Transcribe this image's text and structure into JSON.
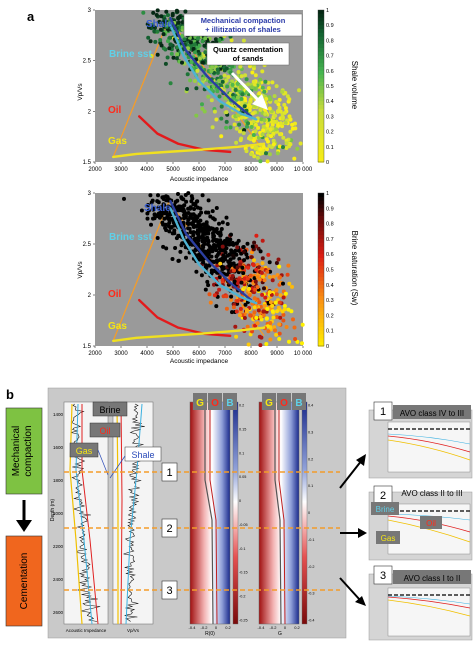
{
  "panel_a": {
    "label": "a",
    "top": {
      "annotations": {
        "shale": "Shale",
        "brine": "Brine sst",
        "oil": "Oil",
        "gas": "Gas",
        "mech_line1": "Mechanical compaction",
        "mech_line2": "+ illitization of shales",
        "quartz_line1": "Quartz cementation",
        "quartz_line2": "of sands"
      },
      "colorbar_label": "Shale volume",
      "colors": {
        "low": "#f5e614",
        "mid": "#3fb54a",
        "high": "#0a2e1a",
        "trend": "#4eb3d3"
      }
    },
    "bottom": {
      "annotations": {
        "shale": "Shale",
        "brine": "Brine sst",
        "oil": "Oil",
        "gas": "Gas"
      },
      "colorbar_label": "Brine saturation (Sw)",
      "colors": {
        "low": "#ffee00",
        "mid": "#e0201c",
        "high": "#000000",
        "trend": "#4eb3d3"
      }
    }
  },
  "panel_b": {
    "label": "b",
    "left_labels": {
      "mech_line1": "Mechanical",
      "mech_line2": "compaction",
      "cement": "Cementation"
    },
    "legend": {
      "brine": "Brine",
      "oil": "Oil",
      "gas": "Gas",
      "shale": "Shale"
    },
    "gob": {
      "g": "G",
      "o": "O",
      "b": "B"
    },
    "markers": [
      "1",
      "2",
      "3"
    ],
    "avo": [
      {
        "num": "1",
        "title": "AVO class IV to III"
      },
      {
        "num": "2",
        "title": "AVO class II to III"
      },
      {
        "num": "3",
        "title": "AVO class I to II"
      }
    ],
    "avo2_labels": {
      "brine": "Brine",
      "oil": "Oil",
      "gas": "Gas"
    },
    "tracks": {
      "ai_xlabel": "Acoustic Impedance",
      "vpvs_xlabel": "Vp/Vs",
      "r0_xlabel": "R(0)",
      "g_xlabel": "G",
      "depth_label": "Depth (m)",
      "depth_ticks": [
        "1400",
        "1600",
        "1800",
        "2000",
        "2200",
        "2400",
        "2600"
      ],
      "ai_ticks": [
        "5000",
        "10000"
      ],
      "vpvs_ticks": [
        "1.5",
        "2",
        "2.5"
      ],
      "r0_ticks": [
        "-0.4",
        "-0.2",
        "0",
        "0.2"
      ],
      "g_ticks": [
        "-0.4",
        "-0.2",
        "0",
        "0.2"
      ],
      "r0_cbar_ticks": [
        "0.2",
        "0.15",
        "0.1",
        "0.05",
        "0",
        "-0.05",
        "-0.1",
        "-0.15",
        "-0.2",
        "-0.25"
      ],
      "g_cbar_ticks": [
        "0.4",
        "0.3",
        "0.2",
        "0.1",
        "0",
        "-0.1",
        "-0.2",
        "-0.3",
        "-0.4"
      ]
    }
  },
  "chart_data": [
    {
      "type": "scatter",
      "xlabel": "Acoustic impedance",
      "ylabel": "Vp/Vs",
      "xlim": [
        2000,
        10000
      ],
      "ylim": [
        1.5,
        3
      ],
      "xticks": [
        "2000",
        "3000",
        "4000",
        "5000",
        "6000",
        "7000",
        "8000",
        "9000",
        "10 000"
      ],
      "yticks": [
        "1.5",
        "2",
        "2.5",
        "3"
      ],
      "colorbar": {
        "label": "Shale volume",
        "ticks": [
          "1",
          "0.9",
          "0.8",
          "0.7",
          "0.6",
          "0.5",
          "0.4",
          "0.3",
          "0.2",
          "0.1",
          "0"
        ]
      },
      "trend_lines": [
        {
          "name": "Shale",
          "color": "#2b3fa0",
          "points": [
            [
              4900,
              2.92
            ],
            [
              5500,
              2.6
            ],
            [
              6300,
              2.35
            ],
            [
              7200,
              2.12
            ],
            [
              8000,
              1.95
            ]
          ]
        },
        {
          "name": "Brine sst",
          "color": "#4eb3d3",
          "points": [
            [
              4900,
              2.85
            ],
            [
              5400,
              2.55
            ],
            [
              6000,
              2.3
            ],
            [
              6800,
              2.1
            ],
            [
              7600,
              1.98
            ],
            [
              8200,
              1.92
            ]
          ]
        },
        {
          "name": "Oil",
          "color": "#e31a1c",
          "points": [
            [
              3700,
              1.95
            ],
            [
              4400,
              1.78
            ],
            [
              5200,
              1.68
            ],
            [
              6200,
              1.62
            ],
            [
              7200,
              1.6
            ]
          ]
        },
        {
          "name": "Gas",
          "color": "#f0e020",
          "points": [
            [
              2700,
              1.55
            ],
            [
              3600,
              1.58
            ],
            [
              4800,
              1.6
            ],
            [
              6000,
              1.62
            ],
            [
              7500,
              1.65
            ],
            [
              8500,
              1.68
            ]
          ]
        }
      ],
      "boundary_lines": [
        {
          "color": "#f39c2a",
          "points": [
            [
              2700,
              1.55
            ],
            [
              4850,
              2.92
            ],
            [
              8500,
              1.6
            ]
          ]
        }
      ]
    },
    {
      "type": "scatter",
      "xlabel": "Acoustic impedance",
      "ylabel": "Vp/Vs",
      "xlim": [
        2000,
        10000
      ],
      "ylim": [
        1.5,
        3
      ],
      "xticks": [
        "2000",
        "3000",
        "4000",
        "5000",
        "6000",
        "7000",
        "8000",
        "9000",
        "10 000"
      ],
      "yticks": [
        "1.5",
        "2",
        "2.5",
        "3"
      ],
      "colorbar": {
        "label": "Brine saturation (Sw)",
        "ticks": [
          "1",
          "0.9",
          "0.8",
          "0.7",
          "0.6",
          "0.5",
          "0.4",
          "0.3",
          "0.2",
          "0.1",
          "0"
        ]
      },
      "trend_lines": [
        {
          "name": "Shale",
          "color": "#2b3fa0",
          "points": [
            [
              4900,
              2.92
            ],
            [
              5500,
              2.6
            ],
            [
              6300,
              2.35
            ],
            [
              7200,
              2.12
            ],
            [
              8000,
              1.95
            ]
          ]
        },
        {
          "name": "Brine sst",
          "color": "#4eb3d3",
          "points": [
            [
              4900,
              2.85
            ],
            [
              5400,
              2.55
            ],
            [
              6000,
              2.3
            ],
            [
              6800,
              2.1
            ],
            [
              7600,
              1.98
            ],
            [
              8200,
              1.92
            ]
          ]
        },
        {
          "name": "Oil",
          "color": "#e31a1c",
          "points": [
            [
              3700,
              1.95
            ],
            [
              4400,
              1.78
            ],
            [
              5200,
              1.68
            ],
            [
              6200,
              1.62
            ],
            [
              7200,
              1.6
            ]
          ]
        },
        {
          "name": "Gas",
          "color": "#f0e020",
          "points": [
            [
              2700,
              1.55
            ],
            [
              3600,
              1.58
            ],
            [
              4800,
              1.6
            ],
            [
              6000,
              1.62
            ],
            [
              7500,
              1.65
            ],
            [
              8500,
              1.68
            ]
          ]
        }
      ],
      "boundary_lines": [
        {
          "color": "#f39c2a",
          "points": [
            [
              2700,
              1.55
            ],
            [
              4850,
              2.92
            ],
            [
              8500,
              1.6
            ]
          ]
        }
      ]
    }
  ]
}
